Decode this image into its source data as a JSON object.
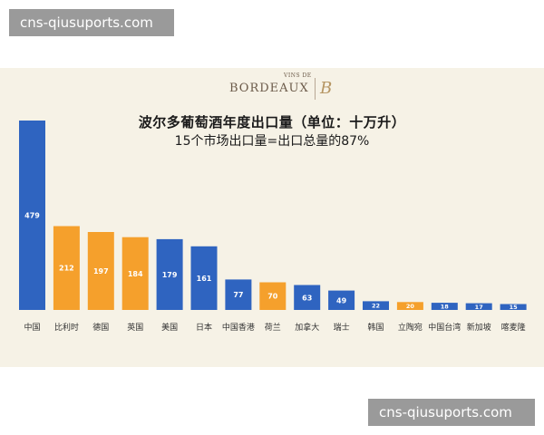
{
  "watermark": {
    "top_text": "cns-qiusuports.com",
    "bottom_text": "cns-qiusuports.com"
  },
  "logo": {
    "small": "VINS DE",
    "main": "BORDEAUX",
    "mark": "B"
  },
  "colors": {
    "blue": "#2f64c0",
    "orange": "#f5a02c",
    "background": "#f6f2e6"
  },
  "chart_data": {
    "type": "bar",
    "title": "波尔多葡萄酒年度出口量（单位：十万升）",
    "subtitle": "15个市场出口量=出口总量的87%",
    "xlabel": "",
    "ylabel": "",
    "ylim": [
      0,
      479
    ],
    "grid": false,
    "categories": [
      "中国",
      "比利时",
      "德国",
      "英国",
      "美国",
      "日本",
      "中国香港",
      "荷兰",
      "加拿大",
      "瑞士",
      "韩国",
      "立陶宛",
      "中国台湾",
      "新加坡",
      "喀麦隆"
    ],
    "values": [
      479,
      212,
      197,
      184,
      179,
      161,
      77,
      70,
      63,
      49,
      22,
      20,
      18,
      17,
      15
    ],
    "bar_colors": [
      "blue",
      "orange",
      "orange",
      "orange",
      "blue",
      "blue",
      "blue",
      "orange",
      "blue",
      "blue",
      "blue",
      "orange",
      "blue",
      "blue",
      "blue"
    ],
    "data_labels": [
      "479",
      "212",
      "197",
      "184",
      "179",
      "161",
      "77",
      "70",
      "63",
      "49",
      "22",
      "20",
      "18",
      "17",
      "15"
    ]
  }
}
